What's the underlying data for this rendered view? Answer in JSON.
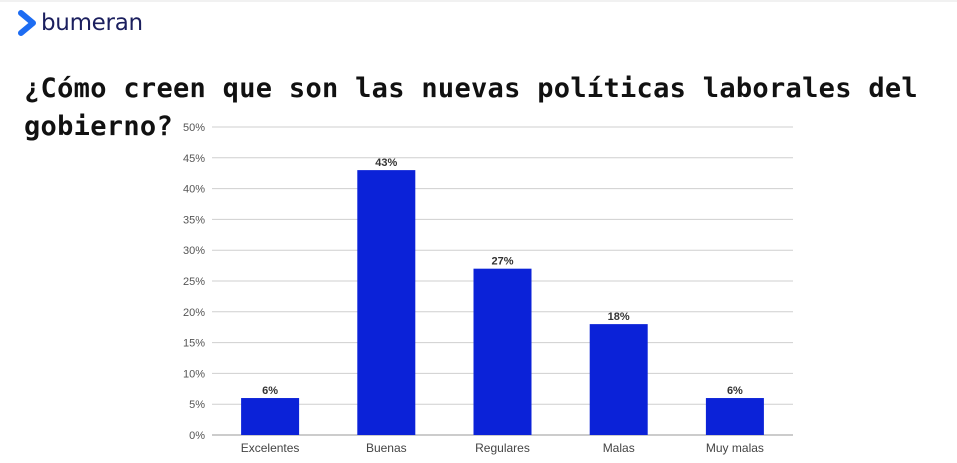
{
  "brand": {
    "name": "bumeran",
    "accent": "#1d6cf2",
    "dark": "#1b1f5e"
  },
  "chart_data": {
    "type": "bar",
    "title": "¿Cómo creen que son las nuevas políticas laborales del gobierno?",
    "categories": [
      "Excelentes",
      "Buenas",
      "Regulares",
      "Malas",
      "Muy malas"
    ],
    "values": [
      6,
      43,
      27,
      18,
      6
    ],
    "value_labels": [
      "6%",
      "43%",
      "27%",
      "18%",
      "6%"
    ],
    "y_ticks": [
      "0%",
      "5%",
      "10%",
      "15%",
      "20%",
      "25%",
      "30%",
      "35%",
      "40%",
      "45%",
      "50%"
    ],
    "ylim": [
      0,
      50
    ],
    "grid": true,
    "bar_color": "#0b22d8"
  }
}
